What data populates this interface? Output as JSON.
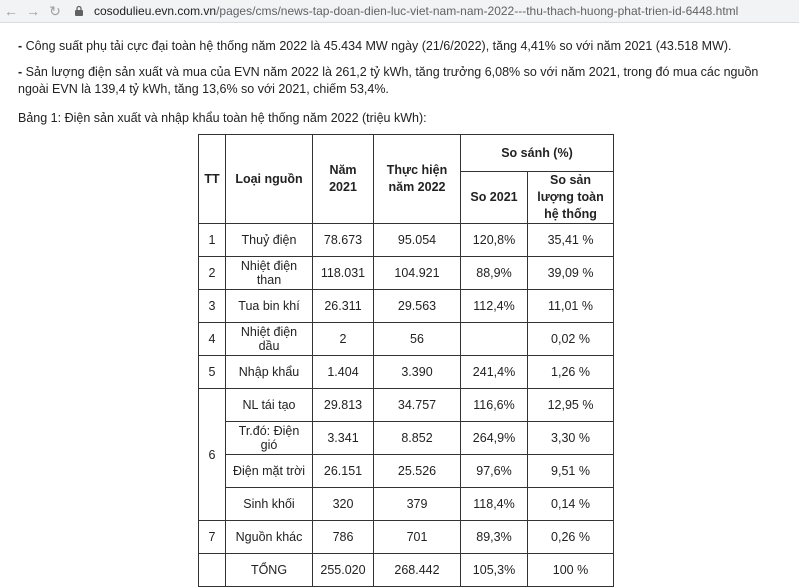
{
  "browser": {
    "back_icon": "arrow-left-icon",
    "forward_icon": "arrow-right-icon",
    "reload_icon": "reload-icon",
    "url_host": "cosodulieu.evn.com.vn",
    "url_path": "/pages/cms/news-tap-doan-dien-luc-viet-nam-nam-2022---thu-thach-huong-phat-trien-id-6448.html"
  },
  "article": {
    "p1_dash": "- ",
    "p1": "Công suất phụ tải cực đại toàn hệ thống năm 2022 là 45.434 MW ngày (21/6/2022), tăng 4,41% so với năm 2021 (43.518 MW).",
    "p2_dash": "- ",
    "p2": "Sản lượng điện sản xuất và mua của EVN năm 2022 là 261,2 tỷ kWh, tăng trưởng 6,08% so với năm 2021, trong đó mua các nguồn ngoài EVN là 139,4 tỷ kWh, tăng 13,6% so với 2021, chiếm 53,4%.",
    "table_caption": "Bảng 1: Điện sản xuất và nhập khẩu toàn hệ thống năm 2022 (triệu kWh):"
  },
  "table": {
    "headers": {
      "tt": "TT",
      "loai_nguon": "Loại nguồn",
      "nam_2021": "Năm 2021",
      "thuc_hien": "Thực hiện năm 2022",
      "so_sanh": "So sánh (%)",
      "so_2021": "So 2021",
      "so_san_luong": "So sản lượng toàn hệ thống"
    },
    "rows": [
      {
        "tt": "1",
        "name": "Thuỷ điện",
        "y2021": "78.673",
        "y2022": "95.054",
        "vs2021": "120,8%",
        "share": "35,41 %"
      },
      {
        "tt": "2",
        "name": "Nhiệt điện than",
        "y2021": "118.031",
        "y2022": "104.921",
        "vs2021": "88,9%",
        "share": "39,09 %"
      },
      {
        "tt": "3",
        "name": "Tua bin khí",
        "y2021": "26.311",
        "y2022": "29.563",
        "vs2021": "112,4%",
        "share": "11,01 %"
      },
      {
        "tt": "4",
        "name": "Nhiệt điện dầu",
        "y2021": "2",
        "y2022": "56",
        "vs2021": "",
        "share": "0,02 %"
      },
      {
        "tt": "5",
        "name": "Nhập khẩu",
        "y2021": "1.404",
        "y2022": "3.390",
        "vs2021": "241,4%",
        "share": "1,26 %"
      },
      {
        "tt": "6",
        "name": "NL tái tạo",
        "y2021": "29.813",
        "y2022": "34.757",
        "vs2021": "116,6%",
        "share": "12,95 %"
      },
      {
        "tt": "",
        "name": "Tr.đó: Điện gió",
        "y2021": "3.341",
        "y2022": "8.852",
        "vs2021": "264,9%",
        "share": "3,30 %"
      },
      {
        "tt": "",
        "name": "Điện mặt trời",
        "y2021": "26.151",
        "y2022": "25.526",
        "vs2021": "97,6%",
        "share": "9,51 %"
      },
      {
        "tt": "",
        "name": "Sinh khối",
        "y2021": "320",
        "y2022": "379",
        "vs2021": "118,4%",
        "share": "0,14 %"
      },
      {
        "tt": "7",
        "name": "Nguồn khác",
        "y2021": "786",
        "y2022": "701",
        "vs2021": "89,3%",
        "share": "0,26 %"
      },
      {
        "tt": "",
        "name": "TỔNG",
        "y2021": "255.020",
        "y2022": "268.442",
        "vs2021": "105,3%",
        "share": "100 %"
      }
    ]
  }
}
